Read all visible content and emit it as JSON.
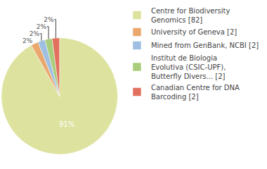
{
  "chart_data": {
    "type": "pie",
    "categories": [
      "Centre for Biodiversity Genomics [82]",
      "University of Geneva [2]",
      "Mined from GenBank, NCBI [2]",
      "Institut de Biologia Evolutiva (CSIC-UPF), Butterfly Divers... [2]",
      "Canadian Centre for DNA Barcoding [2]"
    ],
    "values": [
      91,
      2,
      2,
      2,
      2
    ],
    "value_labels": [
      "91%",
      "2%",
      "2%",
      "2%",
      "2%"
    ],
    "colors": [
      "#dde39f",
      "#eaa86e",
      "#9fbfe2",
      "#a9cd7c",
      "#e2705f"
    ],
    "data_labels": true,
    "legend": "right"
  }
}
